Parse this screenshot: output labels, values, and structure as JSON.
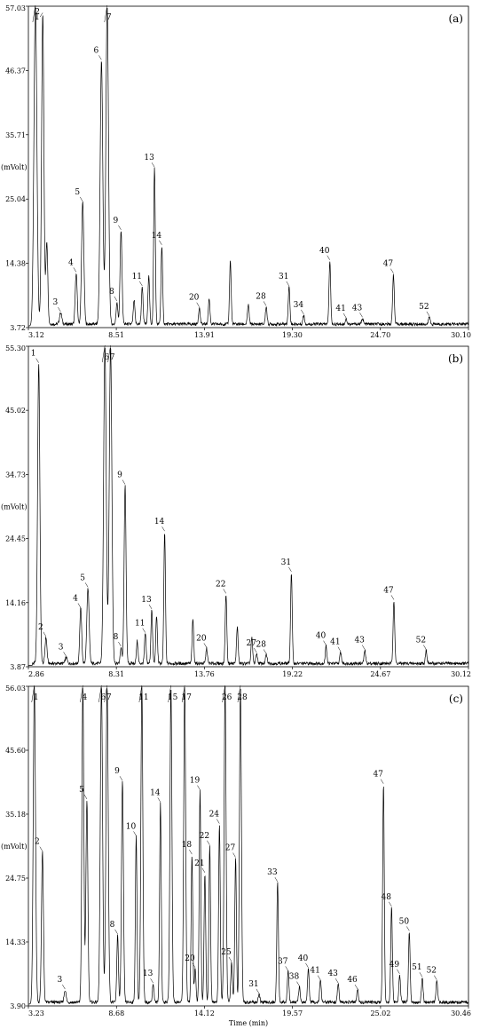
{
  "chart_data": [
    {
      "type": "line",
      "panel_label": "(a)",
      "ylabel": "(mVolt)",
      "xlabel": "",
      "xlim": [
        3.12,
        30.1
      ],
      "ylim": [
        3.72,
        57.03
      ],
      "x_ticks": [
        "3.12",
        "8.51",
        "13.91",
        "19.30",
        "24.70",
        "30.10"
      ],
      "y_ticks": [
        "57.03",
        "46.37",
        "35.71",
        "25.04",
        "14.38",
        "3.72"
      ],
      "baseline": 4.3,
      "peaks": [
        {
          "x": 3.55,
          "y": 57.03,
          "w": 0.09,
          "label": "1"
        },
        {
          "x": 4.0,
          "y": 55.8,
          "w": 0.07,
          "label": "2"
        },
        {
          "x": 4.25,
          "y": 18.0,
          "w": 0.06
        },
        {
          "x": 5.1,
          "y": 6.2,
          "w": 0.07,
          "label": "3"
        },
        {
          "x": 6.05,
          "y": 12.8,
          "w": 0.06,
          "label": "4"
        },
        {
          "x": 6.45,
          "y": 24.5,
          "w": 0.07,
          "label": "5"
        },
        {
          "x": 7.6,
          "y": 48.0,
          "w": 0.08,
          "label": "6"
        },
        {
          "x": 7.95,
          "y": 57.03,
          "w": 0.08,
          "label": "7"
        },
        {
          "x": 8.55,
          "y": 8.0,
          "w": 0.05,
          "label": "8"
        },
        {
          "x": 8.8,
          "y": 19.8,
          "w": 0.06,
          "label": "9"
        },
        {
          "x": 9.6,
          "y": 8.2,
          "w": 0.05
        },
        {
          "x": 10.1,
          "y": 10.5,
          "w": 0.05,
          "label": "11"
        },
        {
          "x": 10.5,
          "y": 12.5,
          "w": 0.05
        },
        {
          "x": 10.85,
          "y": 30.2,
          "w": 0.05,
          "label": "13"
        },
        {
          "x": 11.3,
          "y": 17.3,
          "w": 0.05,
          "label": "14"
        },
        {
          "x": 13.6,
          "y": 7.0,
          "w": 0.05,
          "label": "20"
        },
        {
          "x": 14.2,
          "y": 8.5,
          "w": 0.05
        },
        {
          "x": 15.5,
          "y": 14.8,
          "w": 0.05
        },
        {
          "x": 16.6,
          "y": 7.5,
          "w": 0.05
        },
        {
          "x": 17.7,
          "y": 7.2,
          "w": 0.05,
          "label": "28"
        },
        {
          "x": 19.1,
          "y": 10.5,
          "w": 0.05,
          "label": "31"
        },
        {
          "x": 20.0,
          "y": 5.8,
          "w": 0.05,
          "label": "34"
        },
        {
          "x": 21.6,
          "y": 14.8,
          "w": 0.05,
          "label": "40"
        },
        {
          "x": 22.6,
          "y": 5.2,
          "w": 0.05,
          "label": "41"
        },
        {
          "x": 23.6,
          "y": 5.3,
          "w": 0.05,
          "label": "43"
        },
        {
          "x": 25.5,
          "y": 12.6,
          "w": 0.05,
          "label": "47"
        },
        {
          "x": 27.7,
          "y": 5.5,
          "w": 0.05,
          "label": "52"
        }
      ]
    },
    {
      "type": "line",
      "panel_label": "(b)",
      "ylabel": "(mVolt)",
      "xlabel": "",
      "xlim": [
        2.86,
        30.12
      ],
      "ylim": [
        3.87,
        55.3
      ],
      "x_ticks": [
        "2.86",
        "8.31",
        "13.76",
        "19.22",
        "24.67",
        "30.12"
      ],
      "y_ticks": [
        "55.30",
        "45.02",
        "34.73",
        "24.45",
        "14.16",
        "3.87"
      ],
      "baseline": 4.4,
      "peaks": [
        {
          "x": 3.5,
          "y": 52.5,
          "w": 0.07,
          "label": "1"
        },
        {
          "x": 3.95,
          "y": 8.6,
          "w": 0.06,
          "label": "2"
        },
        {
          "x": 5.2,
          "y": 5.4,
          "w": 0.06,
          "label": "3"
        },
        {
          "x": 6.1,
          "y": 13.2,
          "w": 0.06,
          "label": "4"
        },
        {
          "x": 6.55,
          "y": 16.5,
          "w": 0.07,
          "label": "5"
        },
        {
          "x": 7.6,
          "y": 55.3,
          "w": 0.08,
          "label": "6"
        },
        {
          "x": 7.95,
          "y": 55.3,
          "w": 0.08,
          "label": "7"
        },
        {
          "x": 8.6,
          "y": 7.0,
          "w": 0.05,
          "label": "8"
        },
        {
          "x": 8.85,
          "y": 33.0,
          "w": 0.06,
          "label": "9"
        },
        {
          "x": 9.6,
          "y": 8.0,
          "w": 0.05
        },
        {
          "x": 10.1,
          "y": 9.2,
          "w": 0.05,
          "label": "11"
        },
        {
          "x": 10.5,
          "y": 13.0,
          "w": 0.05,
          "label": "13"
        },
        {
          "x": 10.8,
          "y": 12.0,
          "w": 0.05
        },
        {
          "x": 11.3,
          "y": 25.5,
          "w": 0.05,
          "label": "14"
        },
        {
          "x": 13.05,
          "y": 11.5,
          "w": 0.05
        },
        {
          "x": 13.9,
          "y": 6.8,
          "w": 0.05,
          "label": "20"
        },
        {
          "x": 15.1,
          "y": 15.5,
          "w": 0.05,
          "label": "22"
        },
        {
          "x": 15.8,
          "y": 10.3,
          "w": 0.05
        },
        {
          "x": 16.7,
          "y": 8.5,
          "w": 0.05
        },
        {
          "x": 17.0,
          "y": 6.0,
          "w": 0.05,
          "label": "27"
        },
        {
          "x": 17.6,
          "y": 5.8,
          "w": 0.05,
          "label": "28"
        },
        {
          "x": 19.15,
          "y": 19.0,
          "w": 0.05,
          "label": "31"
        },
        {
          "x": 21.3,
          "y": 7.2,
          "w": 0.05,
          "label": "40"
        },
        {
          "x": 22.2,
          "y": 6.2,
          "w": 0.05,
          "label": "41"
        },
        {
          "x": 23.7,
          "y": 6.5,
          "w": 0.05,
          "label": "43"
        },
        {
          "x": 25.5,
          "y": 14.5,
          "w": 0.05,
          "label": "47"
        },
        {
          "x": 27.5,
          "y": 6.5,
          "w": 0.05,
          "label": "52"
        }
      ]
    },
    {
      "type": "line",
      "panel_label": "(c)",
      "ylabel": "(mVolt)",
      "xlabel": "Time (min)",
      "xlim": [
        3.23,
        30.46
      ],
      "ylim": [
        3.9,
        56.03
      ],
      "x_ticks": [
        "3.23",
        "8.68",
        "14.12",
        "19.57",
        "25.02",
        "30.46"
      ],
      "y_ticks": [
        "56.03",
        "45.60",
        "35.18",
        "24.75",
        "14.33",
        "3.90"
      ],
      "baseline": 4.5,
      "peaks": [
        {
          "x": 3.6,
          "y": 56.03,
          "w": 0.07,
          "label": "1"
        },
        {
          "x": 4.1,
          "y": 29.0,
          "w": 0.06,
          "label": "2"
        },
        {
          "x": 5.5,
          "y": 6.5,
          "w": 0.06,
          "label": "3"
        },
        {
          "x": 6.6,
          "y": 56.03,
          "w": 0.06,
          "label": "4"
        },
        {
          "x": 6.85,
          "y": 37.5,
          "w": 0.06,
          "label": "5"
        },
        {
          "x": 7.75,
          "y": 56.03,
          "w": 0.07,
          "label": "6"
        },
        {
          "x": 8.1,
          "y": 56.03,
          "w": 0.07,
          "label": "7"
        },
        {
          "x": 8.75,
          "y": 15.5,
          "w": 0.05,
          "label": "8"
        },
        {
          "x": 9.05,
          "y": 40.5,
          "w": 0.06,
          "label": "9"
        },
        {
          "x": 9.9,
          "y": 31.5,
          "w": 0.05,
          "label": "10"
        },
        {
          "x": 10.25,
          "y": 56.03,
          "w": 0.06,
          "label": "11"
        },
        {
          "x": 10.95,
          "y": 7.5,
          "w": 0.05,
          "label": "13"
        },
        {
          "x": 11.4,
          "y": 37.0,
          "w": 0.05,
          "label": "14"
        },
        {
          "x": 12.05,
          "y": 56.03,
          "w": 0.06,
          "label": "15"
        },
        {
          "x": 12.9,
          "y": 56.03,
          "w": 0.06,
          "label": "17"
        },
        {
          "x": 13.35,
          "y": 28.5,
          "w": 0.05,
          "label": "18"
        },
        {
          "x": 13.55,
          "y": 10.0,
          "w": 0.05,
          "label": "20"
        },
        {
          "x": 13.85,
          "y": 39.0,
          "w": 0.05,
          "label": "19"
        },
        {
          "x": 14.15,
          "y": 25.5,
          "w": 0.05,
          "label": "21"
        },
        {
          "x": 14.45,
          "y": 30.0,
          "w": 0.05,
          "label": "22"
        },
        {
          "x": 15.05,
          "y": 33.5,
          "w": 0.05,
          "label": "24"
        },
        {
          "x": 15.4,
          "y": 56.03,
          "w": 0.06,
          "label": "26"
        },
        {
          "x": 15.8,
          "y": 11.0,
          "w": 0.05,
          "label": "25"
        },
        {
          "x": 16.05,
          "y": 28.0,
          "w": 0.05,
          "label": "27"
        },
        {
          "x": 16.35,
          "y": 56.03,
          "w": 0.06,
          "label": "28"
        },
        {
          "x": 17.5,
          "y": 5.8,
          "w": 0.05,
          "label": "31"
        },
        {
          "x": 18.65,
          "y": 24.0,
          "w": 0.05,
          "label": "33"
        },
        {
          "x": 19.3,
          "y": 9.5,
          "w": 0.05,
          "label": "37"
        },
        {
          "x": 20.0,
          "y": 7.0,
          "w": 0.05,
          "label": "38"
        },
        {
          "x": 20.55,
          "y": 10.0,
          "w": 0.05,
          "label": "40"
        },
        {
          "x": 21.3,
          "y": 8.0,
          "w": 0.05,
          "label": "41"
        },
        {
          "x": 22.4,
          "y": 7.5,
          "w": 0.05,
          "label": "43"
        },
        {
          "x": 23.6,
          "y": 6.5,
          "w": 0.05,
          "label": "46"
        },
        {
          "x": 25.2,
          "y": 40.0,
          "w": 0.05,
          "label": "47"
        },
        {
          "x": 25.7,
          "y": 20.0,
          "w": 0.05,
          "label": "48"
        },
        {
          "x": 26.2,
          "y": 9.0,
          "w": 0.05,
          "label": "49"
        },
        {
          "x": 26.8,
          "y": 16.0,
          "w": 0.05,
          "label": "50"
        },
        {
          "x": 27.6,
          "y": 8.5,
          "w": 0.05,
          "label": "51"
        },
        {
          "x": 28.5,
          "y": 8.0,
          "w": 0.05,
          "label": "52"
        }
      ]
    }
  ]
}
